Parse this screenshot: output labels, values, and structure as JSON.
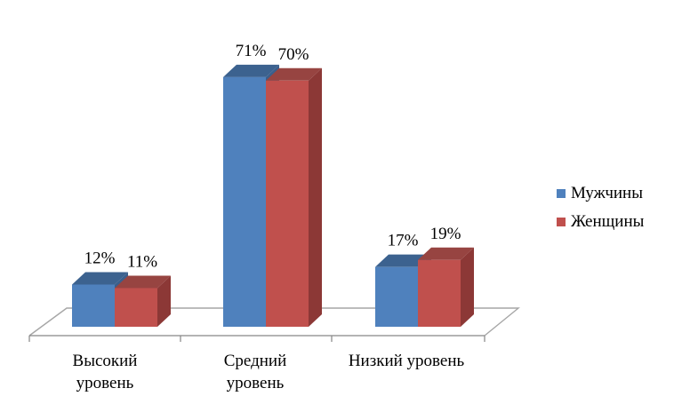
{
  "colors": {
    "series": [
      "#4f81bd",
      "#c0504d"
    ],
    "top": [
      "#3c628f",
      "#974441"
    ],
    "side": [
      "#3a5f8c",
      "#8c3836"
    ],
    "floor_line": "#a6a6a6",
    "axis": "#868686"
  },
  "chart_data": {
    "type": "bar",
    "title": "",
    "xlabel": "",
    "ylabel": "",
    "ylim": [
      0,
      80
    ],
    "grid": false,
    "legend": "right",
    "categories": [
      [
        "Высокий",
        "уровень"
      ],
      [
        "Средний",
        "уровень"
      ],
      [
        "Низкий уровень"
      ]
    ],
    "series": [
      {
        "name": "Мужчины",
        "values": [
          12,
          71,
          17
        ],
        "labels": [
          "12%",
          "71%",
          "17%"
        ]
      },
      {
        "name": "Женщины",
        "values": [
          11,
          70,
          19
        ],
        "labels": [
          "11%",
          "70%",
          "19%"
        ]
      }
    ]
  }
}
